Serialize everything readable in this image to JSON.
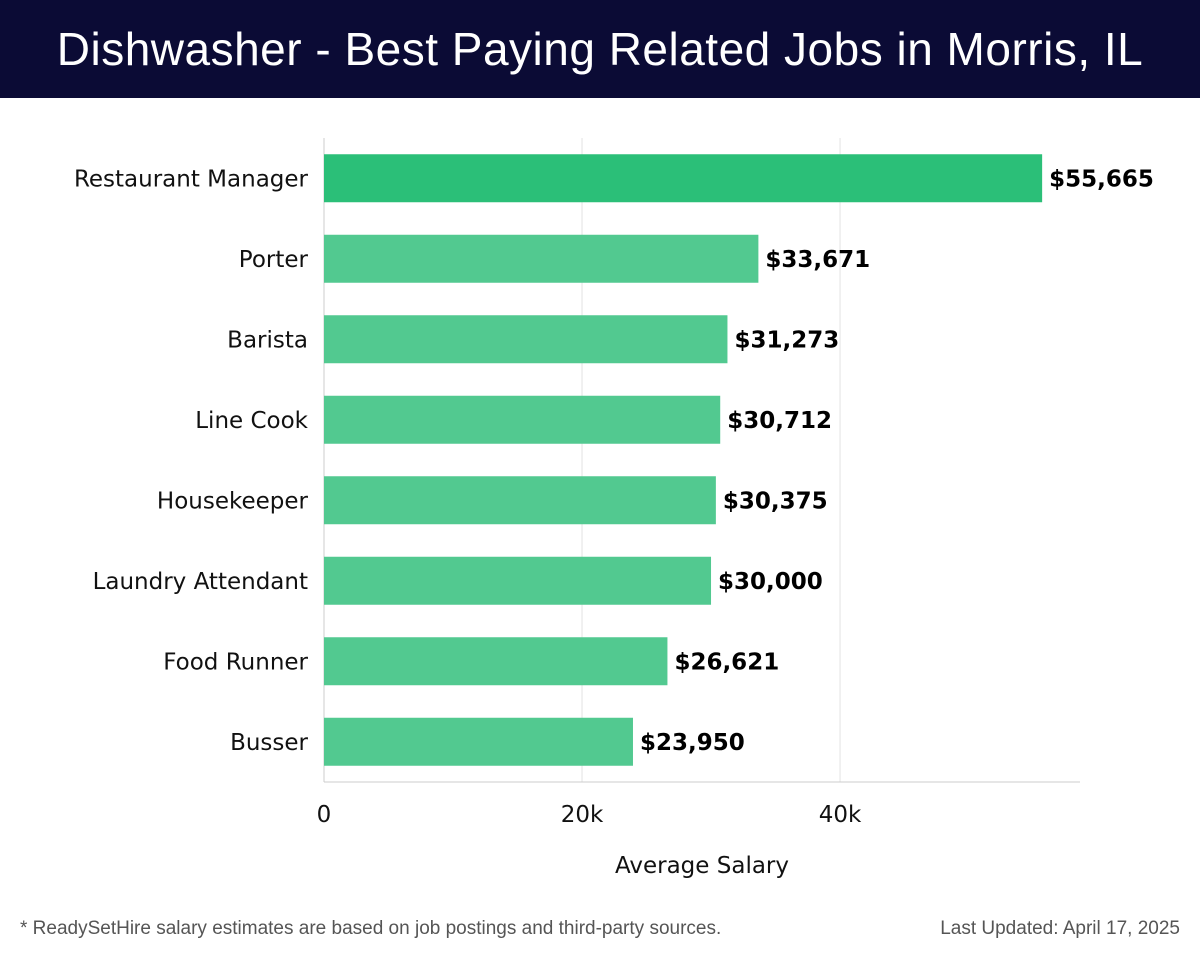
{
  "header": {
    "title": "Dishwasher - Best Paying Related Jobs in Morris, IL"
  },
  "footer": {
    "note": "* ReadySetHire salary estimates are based on job postings and third-party sources.",
    "updated": "Last Updated: April 17, 2025"
  },
  "colors": {
    "banner": "#0b0b35",
    "bar_top": "#2bbf78",
    "bar": "#52c990",
    "grid": "#e2e2e2",
    "axis": "#cccccc"
  },
  "chart_data": {
    "type": "bar",
    "orientation": "horizontal",
    "title": "Dishwasher - Best Paying Related Jobs in Morris, IL",
    "xlabel": "Average Salary",
    "ylabel": "",
    "xlim": [
      0,
      58600
    ],
    "xticks": [
      0,
      20000,
      40000
    ],
    "xtick_labels": [
      "0",
      "20k",
      "40k"
    ],
    "grid": "vertical",
    "categories": [
      "Restaurant Manager",
      "Porter",
      "Barista",
      "Line Cook",
      "Housekeeper",
      "Laundry Attendant",
      "Food Runner",
      "Busser"
    ],
    "values": [
      55665,
      33671,
      31273,
      30712,
      30375,
      30000,
      26621,
      23950
    ],
    "value_labels": [
      "$55,665",
      "$33,671",
      "$31,273",
      "$30,712",
      "$30,375",
      "$30,000",
      "$26,621",
      "$23,950"
    ]
  }
}
